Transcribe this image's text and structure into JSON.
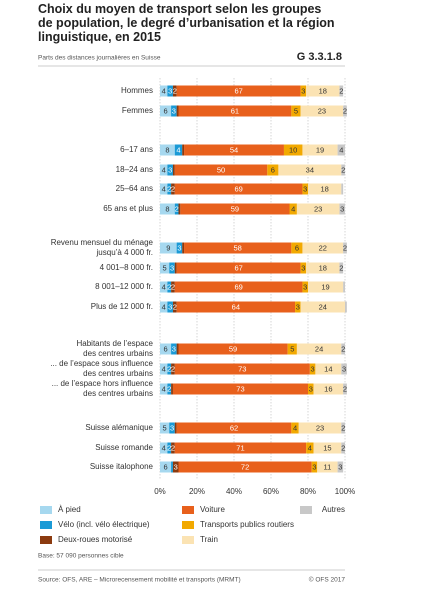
{
  "chart_data": {
    "type": "stacked-bar-horizontal",
    "title": "Choix du moyen de transport selon les groupes\nde population, le degré d’urbanisation et la région\nlinguistique, en 2015",
    "code": "G 3.3.1.8",
    "subtitle": "Parts des distances journalières en Suisse",
    "categories": [
      "Hommes",
      "Femmes",
      "6–17 ans",
      "18–24 ans",
      "25–64 ans",
      "65 ans et plus",
      "Revenu mensuel du ménage\njusqu’à 4 000 fr.",
      "4 001–8 000 fr.",
      "8 001–12 000 fr.",
      "Plus de 12 000 fr.",
      "Habitants de l’espace\ndes centres urbains",
      "... de l’espace sous influence\ndes centres urbains",
      "... de l’espace hors influence\ndes centres urbains",
      "Suisse alémanique",
      "Suisse romande",
      "Suisse italophone"
    ],
    "series": [
      {
        "name": "À pied",
        "color": "#a6d8ef",
        "values": [
          4,
          6,
          8,
          4,
          4,
          8,
          9,
          5,
          4,
          4,
          6,
          4,
          4,
          5,
          4,
          6
        ]
      },
      {
        "name": "Vélo (incl. vélo électrique)",
        "color": "#1a9ad6",
        "values": [
          3,
          3,
          4,
          3,
          2,
          2,
          3,
          3,
          2,
          3,
          3,
          2,
          2,
          3,
          2,
          1
        ]
      },
      {
        "name": "Deux-roues motorisé",
        "color": "#8b3a0f",
        "values": [
          2,
          1,
          1,
          1,
          2,
          1,
          1,
          1,
          2,
          2,
          1,
          2,
          1,
          1,
          2,
          3
        ]
      },
      {
        "name": "Voiture",
        "color": "#e8601c",
        "values": [
          67,
          61,
          54,
          50,
          69,
          59,
          58,
          67,
          69,
          64,
          59,
          73,
          73,
          62,
          71,
          72
        ]
      },
      {
        "name": "Transports publics routiers",
        "color": "#f2a900",
        "values": [
          3,
          5,
          10,
          6,
          3,
          4,
          6,
          3,
          3,
          3,
          5,
          3,
          3,
          4,
          4,
          3
        ]
      },
      {
        "name": "Train",
        "color": "#fbe3b3",
        "values": [
          18,
          23,
          19,
          34,
          18,
          23,
          22,
          18,
          19,
          24,
          24,
          14,
          16,
          23,
          15,
          11
        ]
      },
      {
        "name": "Autres",
        "color": "#c8c8c8",
        "values": [
          2,
          2,
          4,
          2,
          1,
          3,
          2,
          2,
          1,
          1,
          2,
          3,
          2,
          2,
          2,
          3
        ]
      }
    ],
    "xlim": [
      0,
      100
    ],
    "xticks": [
      {
        "value": 0,
        "label": "0%"
      },
      {
        "value": 20,
        "label": "20%"
      },
      {
        "value": 40,
        "label": "40%"
      },
      {
        "value": 60,
        "label": "60%"
      },
      {
        "value": 80,
        "label": "80%"
      },
      {
        "value": 100,
        "label": "100%"
      }
    ],
    "grid": true,
    "note": "Base: 57 090 personnes cible",
    "source": "Source: OFS, ARE – Microrecensement mobilité et transports (MRMT)",
    "copyright": "© OFS 2017"
  }
}
